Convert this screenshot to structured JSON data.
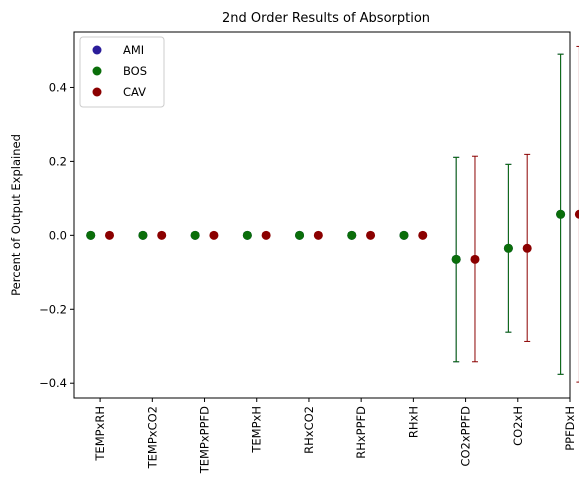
{
  "chart_data": {
    "type": "scatter",
    "title": "2nd Order Results of Absorption",
    "xlabel": "",
    "ylabel": "Percent of Output Explained",
    "categories": [
      "TEMPxRH",
      "TEMPxCO2",
      "TEMPxPPFD",
      "TEMPxH",
      "RHxCO2",
      "RHxPPFD",
      "RHxH",
      "CO2xPPFD",
      "CO2xH",
      "PPFDxH"
    ],
    "ylim": [
      -0.44,
      0.55
    ],
    "yticks": [
      -0.4,
      -0.2,
      0.0,
      0.2,
      0.4
    ],
    "ytick_labels": [
      "−0.4",
      "−0.2",
      "0.0",
      "0.2",
      "0.4"
    ],
    "grid": false,
    "legend_position": "top-left",
    "series": [
      {
        "name": "AMI",
        "color": "#2b1d9a",
        "offset": -0.18,
        "values": [
          0,
          0,
          0,
          0,
          0,
          0,
          0,
          -0.065,
          -0.035,
          0.057
        ],
        "error_low": [
          0,
          0,
          0,
          0,
          0,
          0,
          0,
          -0.342,
          -0.262,
          -0.376
        ],
        "error_high": [
          0,
          0,
          0,
          0,
          0,
          0,
          0,
          0.211,
          0.192,
          0.49
        ]
      },
      {
        "name": "BOS",
        "color": "#0a6e0a",
        "offset": -0.18,
        "values": [
          0,
          0,
          0,
          0,
          0,
          0,
          0,
          -0.065,
          -0.035,
          0.057
        ],
        "error_low": [
          0,
          0,
          0,
          0,
          0,
          0,
          0,
          -0.342,
          -0.262,
          -0.376
        ],
        "error_high": [
          0,
          0,
          0,
          0,
          0,
          0,
          0,
          0.211,
          0.192,
          0.49
        ]
      },
      {
        "name": "CAV",
        "color": "#8b0000",
        "offset": 0.18,
        "values": [
          0,
          0,
          0,
          0,
          0,
          0,
          0,
          -0.065,
          -0.035,
          0.057
        ],
        "error_low": [
          0,
          0,
          0,
          0,
          0,
          0,
          0,
          -0.342,
          -0.287,
          -0.397
        ],
        "error_high": [
          0,
          0,
          0,
          0,
          0,
          0,
          0,
          0.214,
          0.219,
          0.511
        ]
      }
    ]
  }
}
